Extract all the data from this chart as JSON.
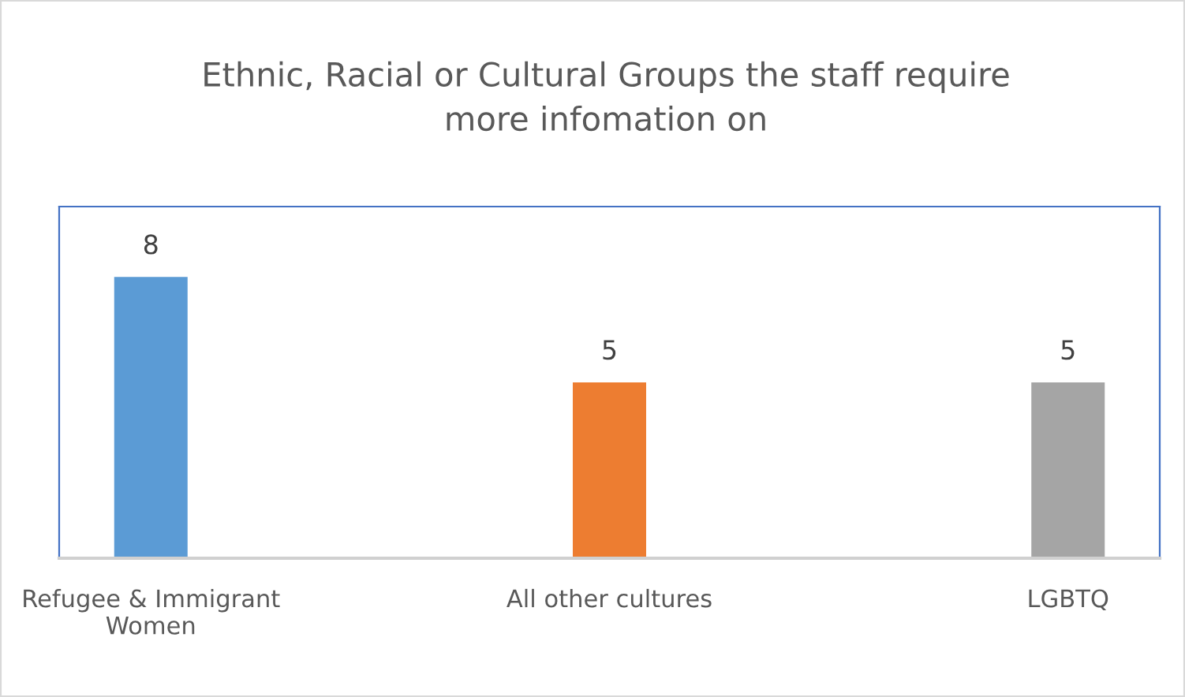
{
  "chart_data": {
    "type": "bar",
    "title": "Ethnic, Racial or Cultural Groups the staff require\nmore infomation on",
    "categories": [
      "Refugee & Immigrant\nWomen",
      "All other cultures",
      "LGBTQ"
    ],
    "values": [
      8,
      5,
      5
    ],
    "colors": [
      "#5b9bd5",
      "#ed7d31",
      "#a5a5a5"
    ],
    "ylim": [
      0,
      10
    ],
    "data_labels": true,
    "tick_labels": "x",
    "grid": false
  }
}
